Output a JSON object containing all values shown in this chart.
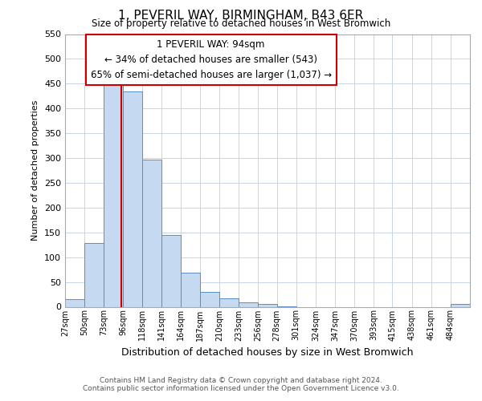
{
  "title": "1, PEVERIL WAY, BIRMINGHAM, B43 6ER",
  "subtitle": "Size of property relative to detached houses in West Bromwich",
  "xlabel": "Distribution of detached houses by size in West Bromwich",
  "ylabel": "Number of detached properties",
  "bin_labels": [
    "27sqm",
    "50sqm",
    "73sqm",
    "96sqm",
    "118sqm",
    "141sqm",
    "164sqm",
    "187sqm",
    "210sqm",
    "233sqm",
    "256sqm",
    "278sqm",
    "301sqm",
    "324sqm",
    "347sqm",
    "370sqm",
    "393sqm",
    "415sqm",
    "438sqm",
    "461sqm",
    "484sqm"
  ],
  "bin_edges": [
    27,
    50,
    73,
    96,
    118,
    141,
    164,
    187,
    210,
    233,
    256,
    278,
    301,
    324,
    347,
    370,
    393,
    415,
    438,
    461,
    484,
    507
  ],
  "bar_heights": [
    15,
    128,
    447,
    434,
    297,
    145,
    68,
    30,
    17,
    9,
    5,
    1,
    0,
    0,
    0,
    0,
    0,
    0,
    0,
    0,
    5
  ],
  "bar_color": "#c5d9f0",
  "bar_edge_color": "#5a8fc4",
  "property_line_x": 94,
  "property_line_color": "#cc0000",
  "annotation_line1": "1 PEVERIL WAY: 94sqm",
  "annotation_line2": "← 34% of detached houses are smaller (543)",
  "annotation_line3": "65% of semi-detached houses are larger (1,037) →",
  "annotation_box_color": "#ffffff",
  "annotation_box_edge_color": "#cc0000",
  "ylim": [
    0,
    550
  ],
  "yticks": [
    0,
    50,
    100,
    150,
    200,
    250,
    300,
    350,
    400,
    450,
    500,
    550
  ],
  "footer_line1": "Contains HM Land Registry data © Crown copyright and database right 2024.",
  "footer_line2": "Contains public sector information licensed under the Open Government Licence v3.0.",
  "background_color": "#ffffff",
  "grid_color": "#c8d4e8"
}
